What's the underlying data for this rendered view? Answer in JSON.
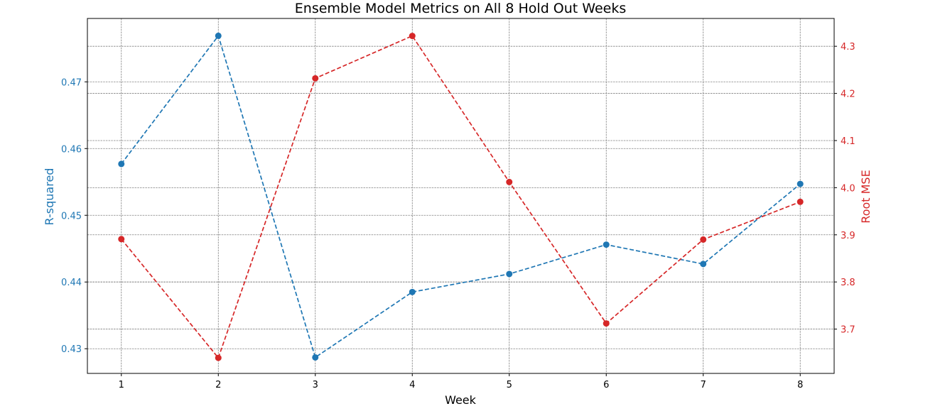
{
  "chart_data": {
    "type": "line",
    "title": "Ensemble Model Metrics on All 8 Hold Out Weeks",
    "xlabel": "Week",
    "x": [
      1,
      2,
      3,
      4,
      5,
      6,
      7,
      8
    ],
    "x_ticks": [
      "1",
      "2",
      "3",
      "4",
      "5",
      "6",
      "7",
      "8"
    ],
    "xlim": [
      0.65,
      8.35
    ],
    "grid": true,
    "colors": {
      "left": "#1f77b4",
      "right": "#d62728",
      "grid": "#808080",
      "axis": "#000000"
    },
    "left_axis": {
      "label": "R-squared",
      "ylim": [
        0.4263,
        0.4795
      ],
      "ticks": [
        0.43,
        0.44,
        0.45,
        0.46,
        0.47
      ],
      "tick_labels": [
        "0.43",
        "0.44",
        "0.45",
        "0.46",
        "0.47"
      ]
    },
    "right_axis": {
      "label": "Root MSE",
      "ylim": [
        3.606,
        4.359
      ],
      "ticks": [
        3.7,
        3.8,
        3.9,
        4.0,
        4.1,
        4.2,
        4.3
      ],
      "tick_labels": [
        "3.7",
        "3.8",
        "3.9",
        "4.0",
        "4.1",
        "4.2",
        "4.3"
      ]
    },
    "series": [
      {
        "axis": "left",
        "color": "#1f77b4",
        "line_style": "dashed",
        "marker": "circle",
        "values": [
          0.4577,
          0.4769,
          0.4287,
          0.4385,
          0.4412,
          0.4456,
          0.4427,
          0.4547
        ]
      },
      {
        "axis": "right",
        "color": "#d62728",
        "line_style": "dashed",
        "marker": "circle",
        "values": [
          3.891,
          3.639,
          4.232,
          4.322,
          4.012,
          3.712,
          3.89,
          3.97
        ]
      }
    ]
  }
}
